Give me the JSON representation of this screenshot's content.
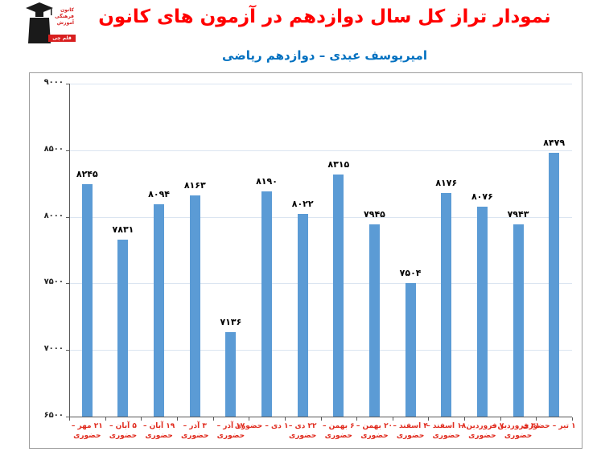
{
  "header": {
    "title": "نمودار تراز کل سال دوازدهم در آزمون های کانون",
    "subtitle": "امیریوسف عبدی – دوازدهم ریاضی",
    "title_color": "#ff0000",
    "subtitle_color": "#0070c0"
  },
  "logo": {
    "line1": "کانون",
    "line2": "فرهنگی",
    "line3": "آموزش",
    "banner": "قلم چی"
  },
  "chart_data": {
    "type": "bar",
    "title": "نمودار تراز کل سال دوازدهم در آزمون های کانون",
    "subtitle": "امیریوسف عبدی – دوازدهم ریاضی",
    "ylim": [
      6500,
      9000
    ],
    "grid": "on",
    "legend": "none",
    "yticks": [
      {
        "value": 9000,
        "label": "۹۰۰۰"
      },
      {
        "value": 8500,
        "label": "۸۵۰۰"
      },
      {
        "value": 8000,
        "label": "۸۰۰۰"
      },
      {
        "value": 7500,
        "label": "۷۵۰۰"
      },
      {
        "value": 7000,
        "label": "۷۰۰۰"
      },
      {
        "value": 6500,
        "label": "۶۵۰۰"
      }
    ],
    "categories": [
      {
        "lines": [
          "۲۱ مهر –",
          "حضوری"
        ]
      },
      {
        "lines": [
          "۵ آبان –",
          "حضوری"
        ]
      },
      {
        "lines": [
          "۱۹ آبان –",
          "حضوری"
        ]
      },
      {
        "lines": [
          "۳ آذر –",
          "حضوری"
        ]
      },
      {
        "lines": [
          "۱۷ آذر –",
          "حضوری"
        ]
      },
      {
        "lines": [
          "۱ دی – حضوری"
        ]
      },
      {
        "lines": [
          "۲۲ دی –",
          "حضوری"
        ]
      },
      {
        "lines": [
          "۶ بهمن –",
          "حضوری"
        ]
      },
      {
        "lines": [
          "۲۰ بهمن –",
          "حضوری"
        ]
      },
      {
        "lines": [
          "۴ اسفند –",
          "حضوری"
        ]
      },
      {
        "lines": [
          "۱۸ اسفند –",
          "حضوری"
        ]
      },
      {
        "lines": [
          "۷ فروردین –",
          "حضوری"
        ]
      },
      {
        "lines": [
          "۳۱ فروردین –",
          "حضوری"
        ]
      },
      {
        "lines": [
          "۱ تیر – حضوری"
        ]
      }
    ],
    "values": [
      8245,
      7831,
      8094,
      8163,
      7136,
      8190,
      8022,
      8315,
      7945,
      7504,
      8176,
      8076,
      7943,
      8479
    ],
    "value_labels": [
      "۸۲۴۵",
      "۷۸۳۱",
      "۸۰۹۴",
      "۸۱۶۳",
      "۷۱۳۶",
      "۸۱۹۰",
      "۸۰۲۲",
      "۸۳۱۵",
      "۷۹۴۵",
      "۷۵۰۴",
      "۸۱۷۶",
      "۸۰۷۶",
      "۷۹۴۳",
      "۸۴۷۹"
    ],
    "bar_color": "#5b9bd5",
    "grid_color": "#dbe5f1",
    "axis_color": "#595959",
    "xlabel_color": "#e02b1e"
  }
}
